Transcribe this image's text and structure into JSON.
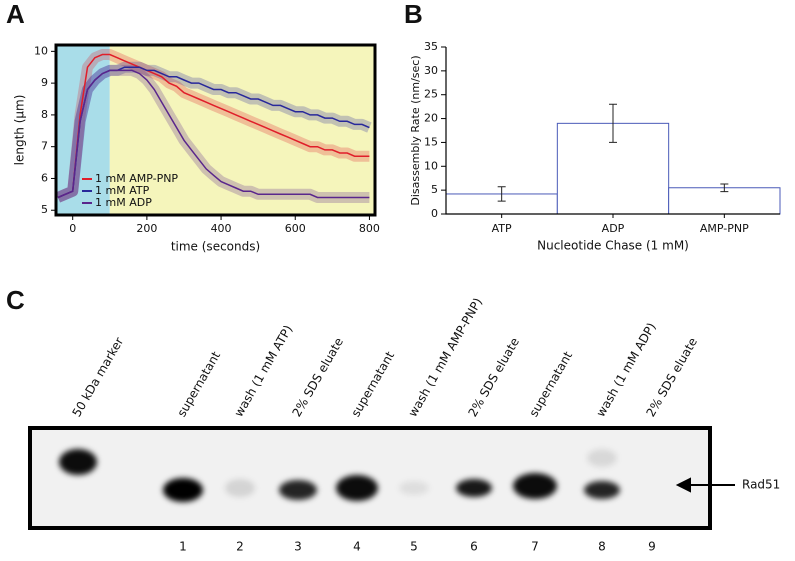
{
  "chart_data": [
    {
      "type": "line",
      "panel": "A",
      "xlabel": "time (seconds)",
      "ylabel": "length (µm)",
      "xlim": [
        -45,
        815
      ],
      "ylim": [
        4.85,
        10.2
      ],
      "xticks": [
        0,
        200,
        400,
        600,
        800
      ],
      "yticks": [
        5,
        6,
        7,
        8,
        9,
        10
      ],
      "legend": "lower left",
      "regions": [
        {
          "x": [
            -45,
            100
          ],
          "color": "#a9dde9"
        },
        {
          "x": [
            100,
            815
          ],
          "color": "#f5f5bb"
        }
      ],
      "x": [
        -40,
        -20,
        0,
        20,
        40,
        60,
        80,
        100,
        120,
        140,
        160,
        180,
        200,
        220,
        240,
        260,
        280,
        300,
        320,
        340,
        360,
        380,
        400,
        420,
        440,
        460,
        480,
        500,
        520,
        540,
        560,
        580,
        600,
        620,
        640,
        660,
        680,
        700,
        720,
        740,
        760,
        780,
        800
      ],
      "series": [
        {
          "name": "1 mM AMP-PNP",
          "color": "#e01e2a",
          "values": [
            5.4,
            5.5,
            5.6,
            8.0,
            9.5,
            9.8,
            9.9,
            9.9,
            9.8,
            9.7,
            9.6,
            9.5,
            9.4,
            9.3,
            9.2,
            9.0,
            8.9,
            8.7,
            8.6,
            8.5,
            8.4,
            8.3,
            8.2,
            8.1,
            8.0,
            7.9,
            7.8,
            7.7,
            7.6,
            7.5,
            7.4,
            7.3,
            7.2,
            7.1,
            7.0,
            7.0,
            6.9,
            6.9,
            6.8,
            6.8,
            6.7,
            6.7,
            6.7
          ]
        },
        {
          "name": "1 mM ATP",
          "color": "#28289a",
          "values": [
            5.4,
            5.5,
            5.6,
            7.8,
            8.8,
            9.1,
            9.3,
            9.4,
            9.4,
            9.5,
            9.5,
            9.5,
            9.4,
            9.4,
            9.3,
            9.2,
            9.2,
            9.1,
            9.0,
            9.0,
            8.9,
            8.8,
            8.8,
            8.7,
            8.7,
            8.6,
            8.5,
            8.5,
            8.4,
            8.3,
            8.3,
            8.2,
            8.1,
            8.1,
            8.0,
            8.0,
            7.9,
            7.9,
            7.8,
            7.8,
            7.7,
            7.7,
            7.6
          ]
        },
        {
          "name": "1 mM ADP",
          "color": "#5a268c",
          "values": [
            5.4,
            5.5,
            5.6,
            7.8,
            8.8,
            9.1,
            9.3,
            9.4,
            9.4,
            9.4,
            9.4,
            9.3,
            9.1,
            8.8,
            8.4,
            8.0,
            7.6,
            7.2,
            6.9,
            6.6,
            6.3,
            6.1,
            5.9,
            5.8,
            5.7,
            5.6,
            5.6,
            5.5,
            5.5,
            5.5,
            5.5,
            5.5,
            5.5,
            5.5,
            5.5,
            5.4,
            5.4,
            5.4,
            5.4,
            5.4,
            5.4,
            5.4,
            5.4
          ]
        }
      ]
    },
    {
      "type": "bar",
      "panel": "B",
      "xlabel": "Nucleotide Chase (1 mM)",
      "ylabel": "Disassembly Rate (nm/sec)",
      "categories": [
        "ATP",
        "ADP",
        "AMP-PNP"
      ],
      "values": [
        4.2,
        19,
        5.5
      ],
      "errors": [
        1.5,
        4,
        0.8
      ],
      "color": "#4a5ab8",
      "ylim": [
        0,
        35
      ],
      "yticks": [
        0,
        5,
        10,
        15,
        20,
        25,
        30,
        35
      ]
    }
  ],
  "gel": {
    "panel": "C",
    "target": "Rad51",
    "lanes": [
      {
        "label": "50 kDa marker"
      },
      {
        "label": "supernatant",
        "number": "1"
      },
      {
        "label": "wash (1 mM ATP)",
        "number": "2"
      },
      {
        "label": "2% SDS eluate",
        "number": "3"
      },
      {
        "label": "supernatant",
        "number": "4"
      },
      {
        "label": "wash (1 mM AMP-PNP)",
        "number": "5"
      },
      {
        "label": "2% SDS eluate",
        "number": "6"
      },
      {
        "label": "supernatant",
        "number": "7"
      },
      {
        "label": "wash (1 mM ADP)",
        "number": "8"
      },
      {
        "label": "2% SDS eluate",
        "number": "9"
      }
    ]
  }
}
